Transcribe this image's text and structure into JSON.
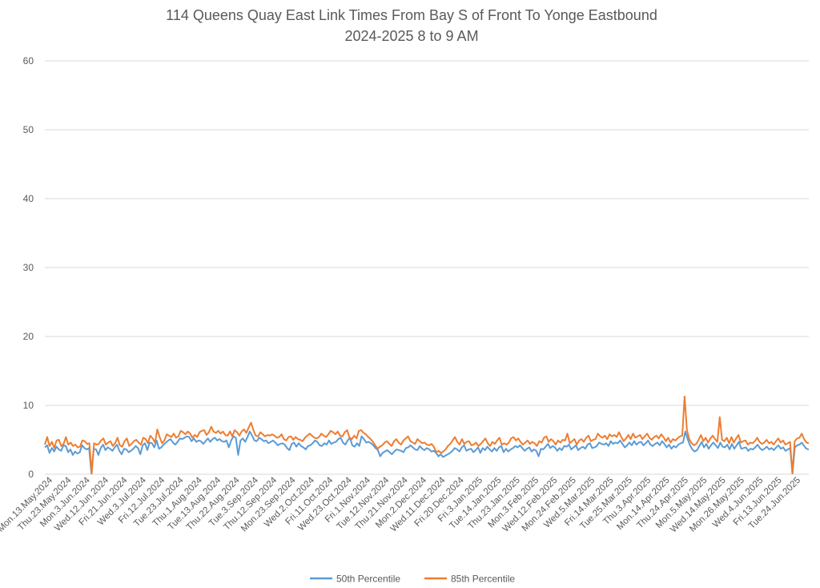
{
  "chart_data": {
    "type": "line",
    "title": "114 Queens Quay East Link Times From Bay S of Front To Yonge Eastbound",
    "subtitle": "2024-2025 8 to 9 AM",
    "xlabel": "",
    "ylabel": "",
    "ylim": [
      0,
      60
    ],
    "yticks": [
      0,
      10,
      20,
      30,
      40,
      50,
      60
    ],
    "grid": true,
    "legend_position": "bottom",
    "x_tick_labels": [
      "Mon.13.May.2024",
      "Thu.23.May.2024",
      "Mon.3.Jun.2024",
      "Wed.12.Jun.2024",
      "Fri.21.Jun.2024",
      "Wed.3.Jul.2024",
      "Fri.12.Jul.2024",
      "Tue.23.Jul.2024",
      "Thu.1.Aug.2024",
      "Tue.13.Aug.2024",
      "Thu.22.Aug.2024",
      "Tue.3.Sep.2024",
      "Thu.12.Sep.2024",
      "Mon.23.Sep.2024",
      "Wed.2.Oct.2024",
      "Fri.11.Oct.2024",
      "Wed.23.Oct.2024",
      "Fri.1.Nov.2024",
      "Tue.12.Nov.2024",
      "Thu.21.Nov.2024",
      "Mon.2.Dec.2024",
      "Wed.11.Dec.2024",
      "Fri.20.Dec.2024",
      "Fri.3.Jan.2025",
      "Tue.14.Jan.2025",
      "Thu.23.Jan.2025",
      "Mon.3.Feb.2025",
      "Wed.12.Feb.2025",
      "Mon.24.Feb.2025",
      "Wed.5.Mar.2025",
      "Fri.14.Mar.2025",
      "Tue.25.Mar.2025",
      "Thu.3.Apr.2025",
      "Mon.14.Apr.2025",
      "Thu.24.Apr.2025",
      "Mon.5.May.2025",
      "Wed.14.May.2025",
      "Mon.26.May.2025",
      "Wed.4.Jun.2025",
      "Fri.13.Jun.2025",
      "Tue.24.Jun.2025"
    ],
    "series": [
      {
        "name": "50th Percentile",
        "color": "#5b9bd5",
        "values": [
          3.9,
          4.2,
          3.1,
          3.8,
          3.3,
          4,
          3.6,
          3.4,
          4.2,
          4.1,
          3.2,
          3.6,
          2.8,
          3.3,
          3,
          3.2,
          4.2,
          3.8,
          3.6,
          3.8,
          0.1,
          3.7,
          3.6,
          2.8,
          3.8,
          4.3,
          3.5,
          3.9,
          3.7,
          3.4,
          3.9,
          4.3,
          3.4,
          2.9,
          3.7,
          3.6,
          3.2,
          3.4,
          3.7,
          4.1,
          3.8,
          2.9,
          4.2,
          4.5,
          3.5,
          4.6,
          4.5,
          3.9,
          4.9,
          3.7,
          3.9,
          4.3,
          4.6,
          4.9,
          5.1,
          4.6,
          4.3,
          4.7,
          5.2,
          5.1,
          5.3,
          5.5,
          5.4,
          4.8,
          5.2,
          4.7,
          4.9,
          4.8,
          4.4,
          4.8,
          5.2,
          4.7,
          5.1,
          5.3,
          4.9,
          5.1,
          4.8,
          4.7,
          4.9,
          3.9,
          4.9,
          5.5,
          5.3,
          2.8,
          4.9,
          5.2,
          4.7,
          5.4,
          6.2,
          5.6,
          4.9,
          4.8,
          5.3,
          5.1,
          4.8,
          4.9,
          4.5,
          4.7,
          4.9,
          4.6,
          4.2,
          4.4,
          4.5,
          4.3,
          3.8,
          3.5,
          4.4,
          4.6,
          4,
          4.5,
          4.1,
          3.9,
          3.6,
          4.1,
          4.2,
          4.5,
          4.9,
          4.7,
          4.2,
          4.1,
          4.5,
          4.3,
          4.9,
          4.4,
          4.6,
          4.7,
          5.1,
          5.3,
          4.6,
          4.3,
          4.9,
          5.3,
          4.2,
          4,
          4.5,
          4.1,
          5.5,
          5.1,
          4.6,
          4.7,
          4.5,
          4.2,
          3.8,
          3.5,
          2.6,
          3.1,
          3.3,
          3.5,
          3.2,
          2.9,
          3.3,
          3.6,
          3.5,
          3.4,
          3.2,
          3.8,
          3.9,
          4.2,
          3.9,
          3.6,
          3.5,
          4.1,
          3.7,
          3.5,
          3.8,
          3.6,
          3.3,
          3.4,
          3.1,
          2.6,
          2.9,
          2.5,
          2.7,
          2.9,
          3.1,
          3.4,
          3.8,
          3.6,
          3.3,
          3.9,
          4.2,
          3.4,
          3.6,
          3.7,
          3.2,
          3.5,
          3.9,
          3.1,
          3.8,
          3.5,
          4,
          3.6,
          3.3,
          3.8,
          3.4,
          3.9,
          4.1,
          3.2,
          3.7,
          3.3,
          3.6,
          3.8,
          4.1,
          3.9,
          4.2,
          3.8,
          3.4,
          3.7,
          3.9,
          3.3,
          3.6,
          3.4,
          2.6,
          3.7,
          3.6,
          4,
          4.4,
          3.8,
          4.1,
          3.9,
          3.4,
          3.8,
          3.5,
          4.1,
          4,
          4.3,
          3.6,
          3.9,
          4.2,
          3.5,
          3.8,
          4,
          3.7,
          4.3,
          4.5,
          3.8,
          3.9,
          4.1,
          4.6,
          4.4,
          4.3,
          4.5,
          4.1,
          4.8,
          4.4,
          4.6,
          4.5,
          4.9,
          4.4,
          3.9,
          4.2,
          4.6,
          4.2,
          4.8,
          4.3,
          4.6,
          4.7,
          4.2,
          4.5,
          4.9,
          4.3,
          4.1,
          4.4,
          4.6,
          4.2,
          4.8,
          4.4,
          3.9,
          4.3,
          3.7,
          4.1,
          3.9,
          4.3,
          4.5,
          4.6,
          6.2,
          5.1,
          4.2,
          3.6,
          3.3,
          3.5,
          4.1,
          4.7,
          3.9,
          4.4,
          3.7,
          4.2,
          4.6,
          4.2,
          3.8,
          4.6,
          4,
          3.9,
          4.3,
          3.6,
          4.4,
          3.7,
          4.2,
          4.7,
          3.7,
          3.8,
          3.9,
          3.4,
          3.7,
          3.6,
          3.9,
          4.3,
          3.8,
          3.5,
          3.7,
          4,
          3.6,
          3.8,
          3.5,
          3.9,
          4.2,
          3.7,
          3.9,
          3.4,
          3.6,
          3.8,
          0.1,
          3.9,
          4.2,
          4.3,
          4.6,
          4.1,
          3.7,
          3.6
        ]
      },
      {
        "name": "85th Percentile",
        "color": "#ed7d31",
        "values": [
          4.3,
          5.4,
          4.1,
          4.7,
          3.8,
          4.9,
          5,
          4.1,
          4.4,
          5.4,
          4.3,
          4.6,
          4.1,
          4.3,
          3.9,
          4,
          4.9,
          4.8,
          4.4,
          4.5,
          0.1,
          4.5,
          4.3,
          4.4,
          4.9,
          5.2,
          4.3,
          4.6,
          4.8,
          4.1,
          4.5,
          5.3,
          4.2,
          4,
          4.8,
          5.2,
          4.1,
          4.4,
          4.8,
          5,
          4.6,
          4.3,
          5.3,
          5.1,
          4.5,
          5.6,
          5.2,
          4.6,
          6.5,
          5.4,
          4.5,
          4.9,
          5.8,
          5.6,
          5.4,
          5.9,
          5.3,
          5.5,
          6.3,
          6.1,
          5.8,
          6.2,
          5.9,
          5.3,
          5.7,
          5.4,
          6.1,
          6.3,
          6.4,
          5.7,
          6.1,
          6.9,
          6.2,
          6,
          6.3,
          5.9,
          6.2,
          5.7,
          5.6,
          6.2,
          5.5,
          6.4,
          6.1,
          5.6,
          6.2,
          6.5,
          6,
          6.8,
          7.5,
          6.4,
          5.6,
          5.5,
          6.1,
          5.8,
          5.5,
          5.7,
          5.6,
          5.8,
          5.6,
          5.3,
          5.4,
          5.8,
          5.1,
          4.9,
          5.4,
          5.5,
          5,
          5.4,
          5.1,
          5,
          4.8,
          5.3,
          5.6,
          5.9,
          5.6,
          5.3,
          5.2,
          5.4,
          5.9,
          5.6,
          5.4,
          5.8,
          6.3,
          6.1,
          5.8,
          6.2,
          5.6,
          5.5,
          6.1,
          6.4,
          5.3,
          5.1,
          5.6,
          5.2,
          6.3,
          6.4,
          6,
          5.8,
          5.4,
          5.1,
          4.7,
          4.2,
          3.7,
          4,
          4.2,
          4.6,
          4.8,
          4.4,
          4.1,
          4.8,
          5.1,
          4.6,
          4.3,
          4.9,
          5.2,
          5.5,
          4.8,
          4.6,
          4.4,
          5.1,
          4.8,
          4.5,
          4.6,
          4.3,
          4.2,
          4.4,
          4,
          3.2,
          3.4,
          3.1,
          3.3,
          3.6,
          4.1,
          4.4,
          4.9,
          5.4,
          4.7,
          4.3,
          5.1,
          4.4,
          4.7,
          4.8,
          4.2,
          4.3,
          4.6,
          4.1,
          4.4,
          4.8,
          5.2,
          4.5,
          4.1,
          4.7,
          4.4,
          4.9,
          5.3,
          4.3,
          4.5,
          4.3,
          4.6,
          5.2,
          5.4,
          4.9,
          5.2,
          4.7,
          4.3,
          4.6,
          4.9,
          4.4,
          4.7,
          4.5,
          4.1,
          4.8,
          4.6,
          5.3,
          5.5,
          4.7,
          5.1,
          4.8,
          4.3,
          4.9,
          4.6,
          5,
          4.9,
          5.9,
          4.5,
          4.8,
          5.1,
          4.3,
          4.9,
          5.1,
          4.7,
          5.3,
          5.6,
          4.8,
          5,
          5.1,
          5.9,
          5.5,
          5.3,
          5.6,
          5.1,
          5.8,
          5.5,
          5.7,
          5.4,
          6.1,
          5.4,
          4.8,
          5.2,
          5.7,
          5.1,
          5.9,
          5.3,
          5.5,
          5.7,
          5.1,
          5.5,
          5.9,
          5.3,
          5,
          5.4,
          5.6,
          5.2,
          5.8,
          5.4,
          4.8,
          5.3,
          4.6,
          5.1,
          4.9,
          5.2,
          5.5,
          5.6,
          11.3,
          6.4,
          5.1,
          4.5,
          4.2,
          4.4,
          5,
          5.7,
          4.8,
          5.3,
          4.6,
          5.2,
          5.6,
          5.1,
          4.7,
          8.3,
          5,
          4.8,
          5.3,
          4.5,
          5.4,
          4.6,
          5.2,
          5.7,
          4.6,
          4.8,
          4.9,
          4.3,
          4.6,
          4.5,
          4.8,
          5.3,
          4.7,
          4.4,
          4.6,
          5,
          4.5,
          4.7,
          4.3,
          4.8,
          5.2,
          4.6,
          4.9,
          4.3,
          4.5,
          4.7,
          0.1,
          4.8,
          5.2,
          5.3,
          5.9,
          5.1,
          4.6,
          4.5
        ]
      }
    ]
  }
}
